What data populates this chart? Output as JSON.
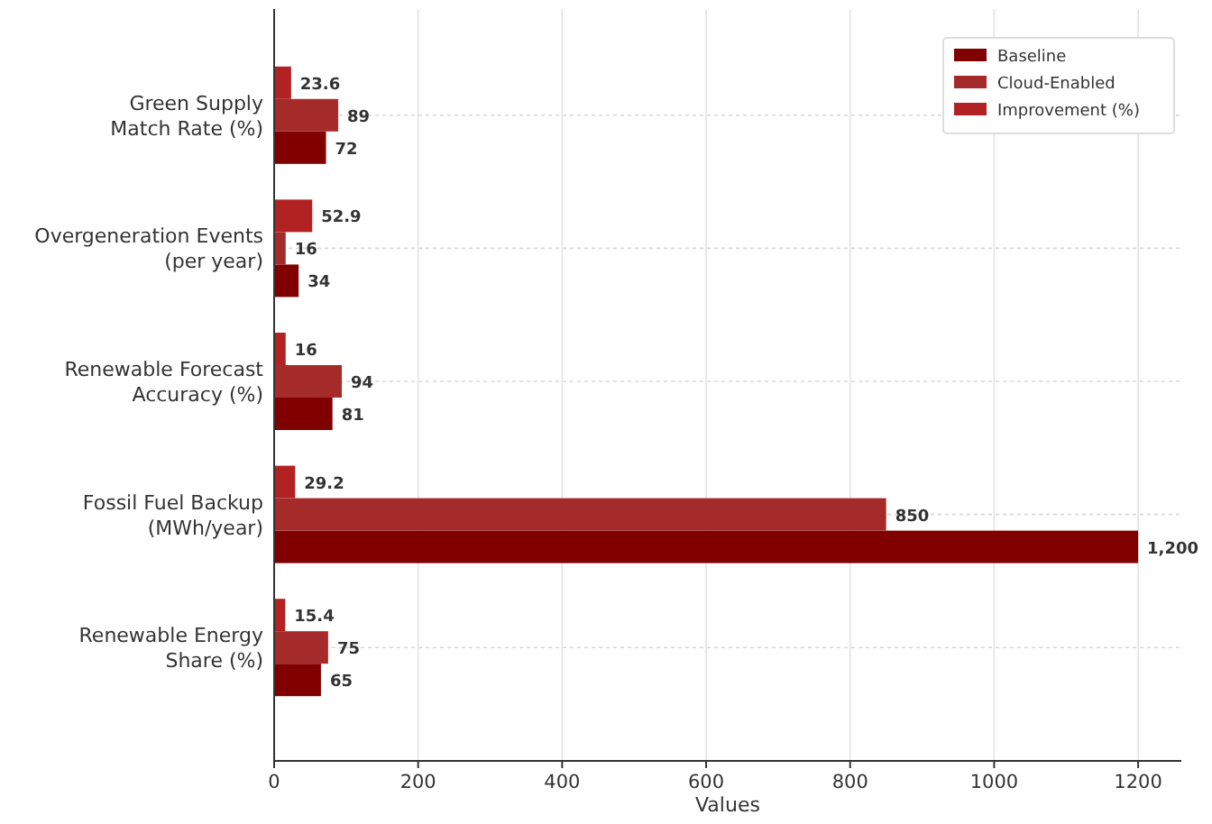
{
  "chart_data": {
    "type": "bar",
    "orientation": "horizontal",
    "xlabel": "Values",
    "categories": [
      "Green Supply\nMatch Rate (%)",
      "Overgeneration Events\n(per year)",
      "Renewable Forecast\nAccuracy (%)",
      "Fossil Fuel Backup\n(MWh/year)",
      "Renewable Energy\nShare (%)"
    ],
    "series": [
      {
        "name": "Baseline",
        "color": "#800000",
        "values": [
          72,
          34,
          81,
          1200,
          65
        ],
        "value_labels": [
          "72",
          "34",
          "81",
          "1,200",
          "65"
        ]
      },
      {
        "name": "Cloud-Enabled",
        "color": "#a52a2a",
        "values": [
          89,
          16,
          94,
          850,
          75
        ],
        "value_labels": [
          "89",
          "16",
          "94",
          "850",
          "75"
        ]
      },
      {
        "name": "Improvement (%)",
        "color": "#b22222",
        "values": [
          23.6,
          52.9,
          16,
          29.2,
          15.4
        ],
        "value_labels": [
          "23.6",
          "52.9",
          "16",
          "29.2",
          "15.4"
        ]
      }
    ],
    "xlim": [
      0,
      1260
    ],
    "xticks": [
      0,
      200,
      400,
      600,
      800,
      1000,
      1200
    ],
    "grid": true,
    "legend": "top right"
  }
}
